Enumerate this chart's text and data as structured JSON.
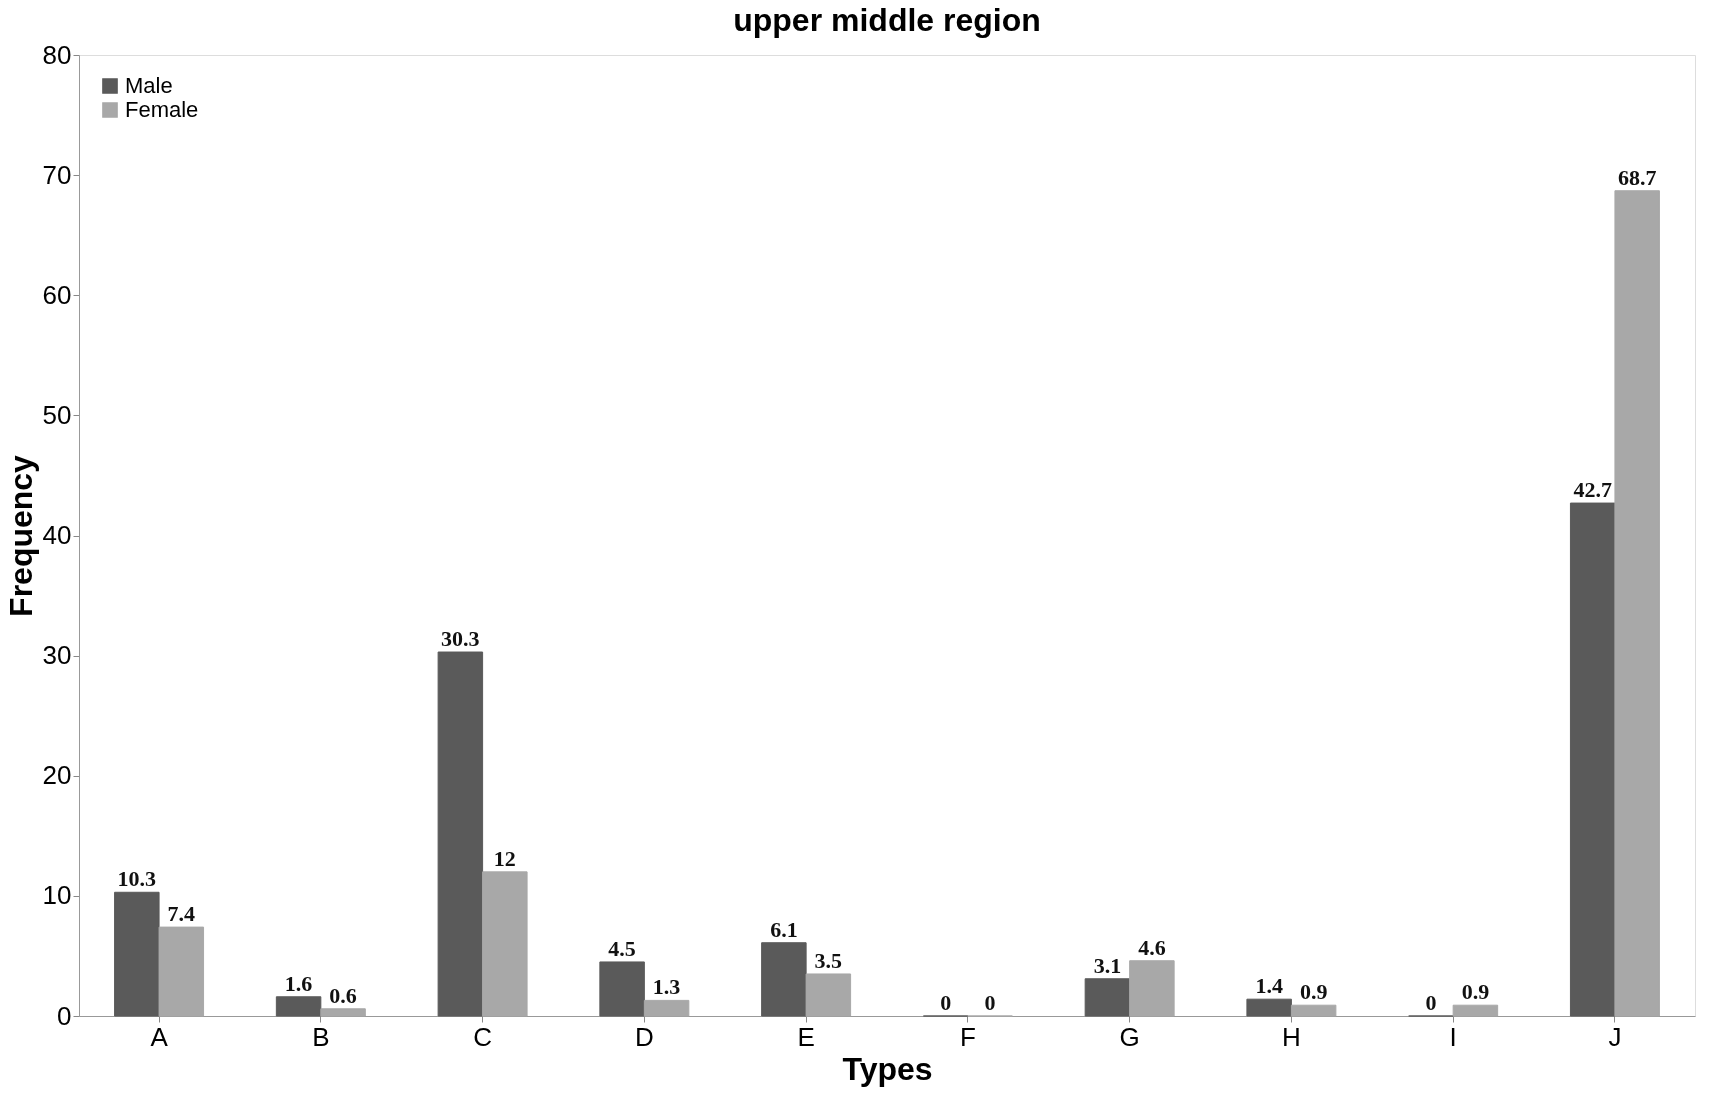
{
  "chart_data": {
    "type": "bar",
    "title": "upper middle region",
    "xlabel": "Types",
    "ylabel": "Frequency",
    "categories": [
      "A",
      "B",
      "C",
      "D",
      "E",
      "F",
      "G",
      "H",
      "I",
      "J"
    ],
    "series": [
      {
        "name": "Male",
        "color": "#5a5a5a",
        "values": [
          10.3,
          1.6,
          30.3,
          4.5,
          6.1,
          0,
          3.1,
          1.4,
          0,
          42.7
        ]
      },
      {
        "name": "Female",
        "color": "#a8a8a8",
        "values": [
          7.4,
          0.6,
          12,
          1.3,
          3.5,
          0,
          4.6,
          0.9,
          0.9,
          68.7
        ]
      }
    ],
    "ylim": [
      0,
      80
    ],
    "yticks": [
      0,
      10,
      20,
      30,
      40,
      50,
      60,
      70,
      80
    ],
    "grid": false,
    "legend": "top left",
    "data_labels": true
  }
}
